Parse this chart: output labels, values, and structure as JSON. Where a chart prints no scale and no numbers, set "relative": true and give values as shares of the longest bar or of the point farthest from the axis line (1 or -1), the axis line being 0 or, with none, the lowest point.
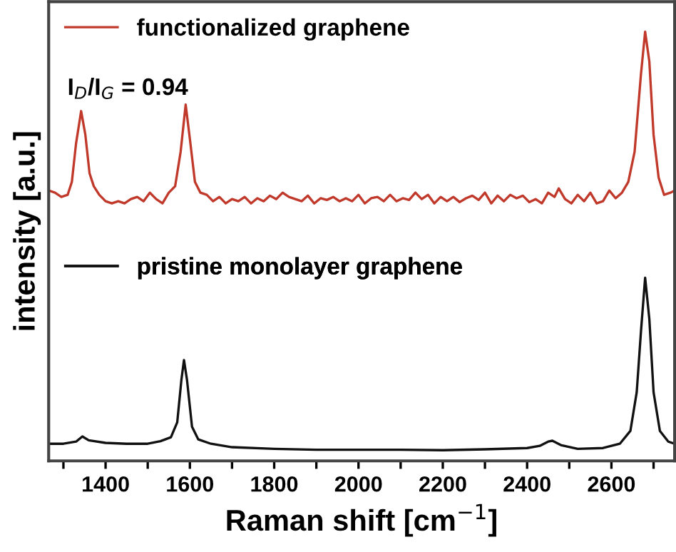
{
  "chart_data": {
    "type": "line",
    "relative": true,
    "xlabel": "Raman shift [cm$^{−1}$]",
    "ylabel": "intensity [a.u.]",
    "xlim": [
      1265,
      2750
    ],
    "xticks": [
      {
        "value": 1300,
        "label": null
      },
      1400,
      {
        "value": 1500,
        "label": null
      },
      1600,
      {
        "value": 1700,
        "label": null
      },
      1800,
      {
        "value": 1900,
        "label": null
      },
      2000,
      {
        "value": 2100,
        "label": null
      },
      2200,
      {
        "value": 2300,
        "label": null
      },
      2400,
      {
        "value": 2500,
        "label": null
      },
      2600,
      {
        "value": 2700,
        "label": null
      }
    ],
    "legend": "top left",
    "grid": false,
    "marker": "none",
    "line_style": "solid",
    "tick_labels": "x",
    "annotations": [
      "I$_{D}$/I$_{G}$ = 0.94"
    ],
    "series": [
      {
        "name": "functionalized graphene",
        "color": "#c0392b",
        "x": [
          1265,
          1280,
          1295,
          1310,
          1320,
          1330,
          1342,
          1352,
          1362,
          1372,
          1385,
          1400,
          1415,
          1430,
          1445,
          1460,
          1475,
          1490,
          1505,
          1520,
          1535,
          1550,
          1565,
          1578,
          1590,
          1600,
          1612,
          1625,
          1640,
          1655,
          1670,
          1685,
          1700,
          1715,
          1730,
          1745,
          1760,
          1775,
          1790,
          1805,
          1820,
          1835,
          1850,
          1865,
          1880,
          1895,
          1910,
          1925,
          1940,
          1955,
          1970,
          1985,
          2000,
          2015,
          2030,
          2045,
          2060,
          2075,
          2090,
          2105,
          2120,
          2135,
          2150,
          2165,
          2180,
          2195,
          2210,
          2225,
          2240,
          2255,
          2270,
          2285,
          2300,
          2315,
          2330,
          2345,
          2360,
          2375,
          2390,
          2405,
          2420,
          2435,
          2450,
          2465,
          2475,
          2490,
          2505,
          2520,
          2535,
          2550,
          2565,
          2580,
          2595,
          2610,
          2625,
          2640,
          2655,
          2670,
          2680,
          2690,
          2700,
          2712,
          2725,
          2740,
          2750
        ],
        "values": [
          0.63,
          0.625,
          0.615,
          0.62,
          0.65,
          0.74,
          0.815,
          0.76,
          0.67,
          0.64,
          0.62,
          0.605,
          0.6,
          0.605,
          0.6,
          0.61,
          0.615,
          0.605,
          0.625,
          0.61,
          0.6,
          0.625,
          0.64,
          0.72,
          0.83,
          0.75,
          0.65,
          0.625,
          0.62,
          0.605,
          0.615,
          0.6,
          0.61,
          0.605,
          0.615,
          0.6,
          0.612,
          0.605,
          0.618,
          0.61,
          0.625,
          0.615,
          0.61,
          0.605,
          0.618,
          0.6,
          0.612,
          0.608,
          0.615,
          0.605,
          0.612,
          0.605,
          0.62,
          0.6,
          0.612,
          0.615,
          0.605,
          0.62,
          0.605,
          0.612,
          0.608,
          0.625,
          0.61,
          0.62,
          0.6,
          0.615,
          0.605,
          0.615,
          0.603,
          0.612,
          0.618,
          0.608,
          0.625,
          0.6,
          0.618,
          0.605,
          0.62,
          0.612,
          0.618,
          0.603,
          0.61,
          0.6,
          0.625,
          0.615,
          0.635,
          0.61,
          0.6,
          0.62,
          0.605,
          0.625,
          0.6,
          0.605,
          0.63,
          0.612,
          0.625,
          0.65,
          0.72,
          0.9,
          1.0,
          0.93,
          0.76,
          0.66,
          0.62,
          0.625,
          0.63
        ]
      },
      {
        "name": "pristine monolayer graphene",
        "color": "#111111",
        "x": [
          1265,
          1300,
          1330,
          1345,
          1360,
          1400,
          1450,
          1500,
          1530,
          1555,
          1570,
          1580,
          1586,
          1593,
          1605,
          1620,
          1650,
          1700,
          1800,
          1900,
          2000,
          2100,
          2200,
          2300,
          2400,
          2430,
          2450,
          2460,
          2480,
          2520,
          2580,
          2620,
          2645,
          2660,
          2670,
          2680,
          2690,
          2700,
          2715,
          2735,
          2750
        ],
        "values": [
          0.04,
          0.04,
          0.045,
          0.057,
          0.048,
          0.042,
          0.04,
          0.04,
          0.046,
          0.055,
          0.09,
          0.19,
          0.235,
          0.19,
          0.08,
          0.05,
          0.04,
          0.032,
          0.028,
          0.026,
          0.026,
          0.026,
          0.025,
          0.027,
          0.03,
          0.035,
          0.045,
          0.047,
          0.037,
          0.028,
          0.03,
          0.04,
          0.07,
          0.16,
          0.3,
          0.427,
          0.33,
          0.16,
          0.07,
          0.045,
          0.04
        ]
      }
    ]
  }
}
